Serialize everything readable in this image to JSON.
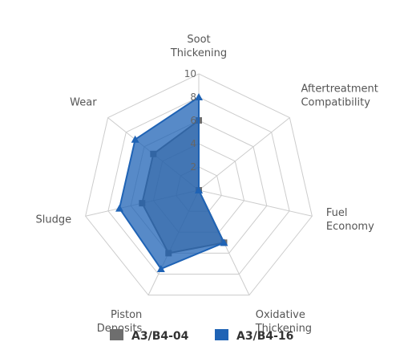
{
  "chart_data": {
    "type": "radar",
    "categories": [
      [
        "Soot",
        "Thickening"
      ],
      [
        "Aftertreatment",
        "Compatibility"
      ],
      [
        "Fuel",
        "Economy"
      ],
      [
        "Oxidative",
        "Thickening"
      ],
      [
        "Piston",
        "Deposits"
      ],
      [
        "Sludge"
      ],
      [
        "Wear"
      ]
    ],
    "rlim": [
      0,
      10
    ],
    "ticks": [
      "2",
      "4",
      "6",
      "8",
      "10"
    ],
    "grid": true,
    "legend_position": "bottom",
    "series": [
      {
        "name": "A3/B4-04",
        "color": "#6e6e6e",
        "marker": "square",
        "values": [
          6,
          0,
          0,
          5,
          6,
          5,
          5
        ]
      },
      {
        "name": "A3/B4-16",
        "color": "#1f63b5",
        "marker": "triangle",
        "values": [
          8,
          0,
          0,
          5,
          7.5,
          7,
          7
        ]
      }
    ]
  }
}
